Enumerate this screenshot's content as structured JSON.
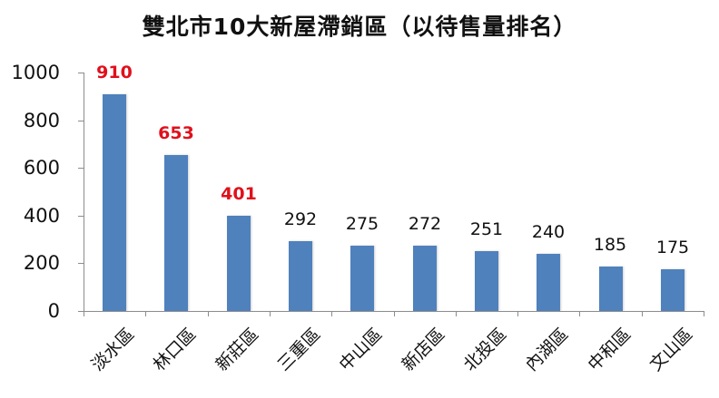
{
  "chart_data": {
    "type": "bar",
    "title": "雙北市10大新屋滯銷區（以待售量排名）",
    "xlabel": "",
    "ylabel": "",
    "categories": [
      "淡水區",
      "林口區",
      "新莊區",
      "三重區",
      "中山區",
      "新店區",
      "北投區",
      "內湖區",
      "中和區",
      "文山區"
    ],
    "values": [
      910,
      653,
      401,
      292,
      275,
      272,
      251,
      240,
      185,
      175
    ],
    "highlighted": [
      true,
      true,
      true,
      false,
      false,
      false,
      false,
      false,
      false,
      false
    ],
    "ylim": [
      0,
      1000
    ],
    "yticks": [
      "0",
      "200",
      "400",
      "600",
      "800",
      "1000"
    ],
    "grid": false,
    "legend": null,
    "colors": {
      "bar": "#4f81bd",
      "highlight_label": "#e0101b",
      "label": "#111111",
      "axis": "#8c8c8c"
    }
  }
}
